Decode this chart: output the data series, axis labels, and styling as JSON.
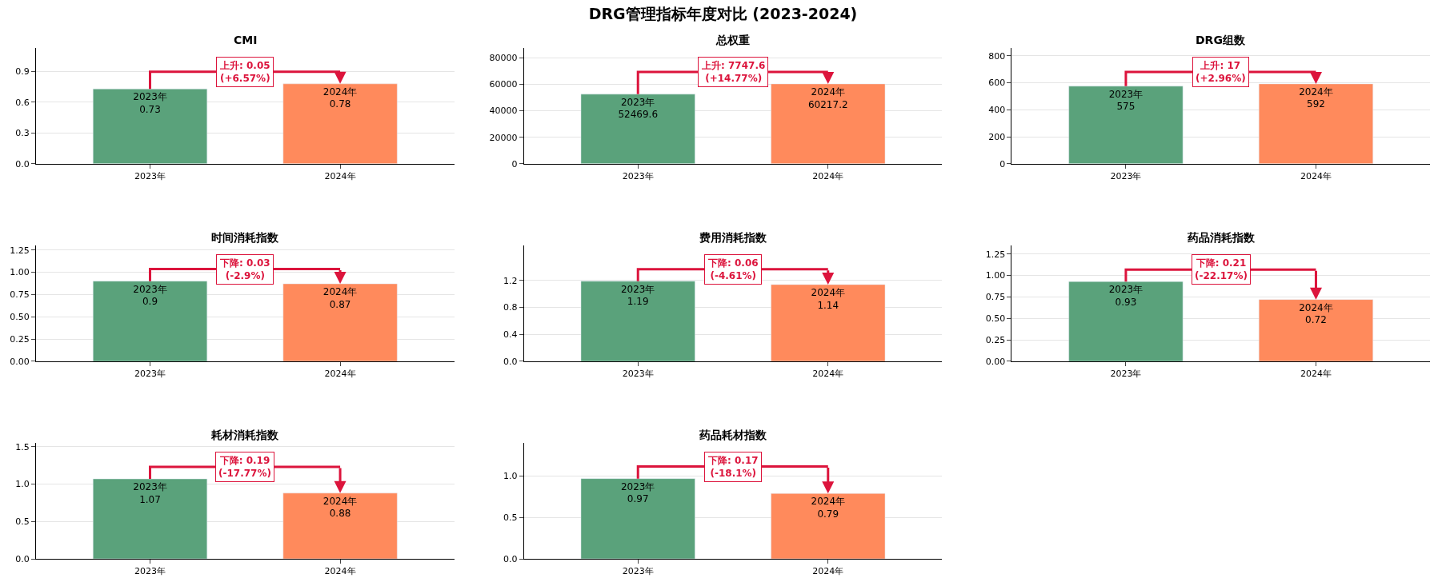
{
  "chart_data": [
    {
      "type": "other",
      "title": "DRG管理指标年度对比 (2023-2024)"
    },
    {
      "type": "bar",
      "title": "CMI",
      "categories": [
        "2023年",
        "2024年"
      ],
      "values": [
        0.73,
        0.78
      ],
      "colors": [
        "#5aa27b",
        "#ff8a5c"
      ],
      "value_labels": [
        "2023年\n0.73",
        "2024年\n0.78"
      ],
      "ylim": [
        0,
        1.13
      ],
      "yticks": [
        {
          "value": 0,
          "label": "0.0"
        },
        0.3,
        0.6,
        0.9
      ],
      "grid": "y",
      "annotations": [
        "上升: 0.05\n(+6.57%)"
      ]
    },
    {
      "type": "bar",
      "title": "总权重",
      "categories": [
        "2023年",
        "2024年"
      ],
      "values": [
        52469.6,
        60217.2
      ],
      "colors": [
        "#5aa27b",
        "#ff8a5c"
      ],
      "value_labels": [
        "2023年\n52469.6",
        "2024年\n60217.2"
      ],
      "ylim": [
        0,
        87300
      ],
      "yticks": [
        0,
        20000,
        40000,
        60000,
        80000
      ],
      "grid": "y",
      "annotations": [
        "上升: 7747.6\n(+14.77%)"
      ]
    },
    {
      "type": "bar",
      "title": "DRG组数",
      "categories": [
        "2023年",
        "2024年"
      ],
      "values": [
        575,
        592
      ],
      "colors": [
        "#5aa27b",
        "#ff8a5c"
      ],
      "value_labels": [
        "2023年\n575",
        "2024年\n592"
      ],
      "ylim": [
        0,
        858
      ],
      "yticks": [
        0,
        200,
        400,
        600,
        800
      ],
      "grid": "y",
      "annotations": [
        "上升: 17\n(+2.96%)"
      ]
    },
    {
      "type": "bar",
      "title": "时间消耗指数",
      "categories": [
        "2023年",
        "2024年"
      ],
      "values": [
        0.9,
        0.87
      ],
      "colors": [
        "#5aa27b",
        "#ff8a5c"
      ],
      "value_labels": [
        "2023年\n0.9",
        "2024年\n0.87"
      ],
      "ylim": [
        0,
        1.3
      ],
      "yticks": [
        {
          "value": 0,
          "label": "0.00"
        },
        0.25,
        {
          "value": 0.5,
          "label": "0.50"
        },
        0.75,
        {
          "value": 1,
          "label": "1.00"
        },
        1.25
      ],
      "grid": "y",
      "annotations": [
        "下降: 0.03\n(-2.9%)"
      ]
    },
    {
      "type": "bar",
      "title": "费用消耗指数",
      "categories": [
        "2023年",
        "2024年"
      ],
      "values": [
        1.19,
        1.14
      ],
      "colors": [
        "#5aa27b",
        "#ff8a5c"
      ],
      "value_labels": [
        "2023年\n1.19",
        "2024年\n1.14"
      ],
      "ylim": [
        0,
        1.72
      ],
      "yticks": [
        {
          "value": 0,
          "label": "0.0"
        },
        0.4,
        0.8,
        1.2
      ],
      "grid": "y",
      "annotations": [
        "下降: 0.06\n(-4.61%)"
      ]
    },
    {
      "type": "bar",
      "title": "药品消耗指数",
      "categories": [
        "2023年",
        "2024年"
      ],
      "values": [
        0.93,
        0.72
      ],
      "colors": [
        "#5aa27b",
        "#ff8a5c"
      ],
      "value_labels": [
        "2023年\n0.93",
        "2024年\n0.72"
      ],
      "ylim": [
        0,
        1.35
      ],
      "yticks": [
        {
          "value": 0,
          "label": "0.00"
        },
        0.25,
        {
          "value": 0.5,
          "label": "0.50"
        },
        0.75,
        {
          "value": 1,
          "label": "1.00"
        },
        1.25
      ],
      "grid": "y",
      "annotations": [
        "下降: 0.21\n(-22.17%)"
      ]
    },
    {
      "type": "bar",
      "title": "耗材消耗指数",
      "categories": [
        "2023年",
        "2024年"
      ],
      "values": [
        1.07,
        0.88
      ],
      "colors": [
        "#5aa27b",
        "#ff8a5c"
      ],
      "value_labels": [
        "2023年\n1.07",
        "2024年\n0.88"
      ],
      "ylim": [
        0,
        1.55
      ],
      "yticks": [
        {
          "value": 0,
          "label": "0.0"
        },
        0.5,
        {
          "value": 1,
          "label": "1.0"
        },
        1.5
      ],
      "grid": "y",
      "annotations": [
        "下降: 0.19\n(-17.77%)"
      ]
    },
    {
      "type": "bar",
      "title": "药品耗材指数",
      "categories": [
        "2023年",
        "2024年"
      ],
      "values": [
        0.97,
        0.79
      ],
      "colors": [
        "#5aa27b",
        "#ff8a5c"
      ],
      "value_labels": [
        "2023年\n0.97",
        "2024年\n0.79"
      ],
      "ylim": [
        0,
        1.4
      ],
      "yticks": [
        {
          "value": 0,
          "label": "0.0"
        },
        0.5,
        {
          "value": 1,
          "label": "1.0"
        }
      ],
      "grid": "y",
      "annotations": [
        "下降: 0.17\n(-18.1%)"
      ]
    }
  ]
}
